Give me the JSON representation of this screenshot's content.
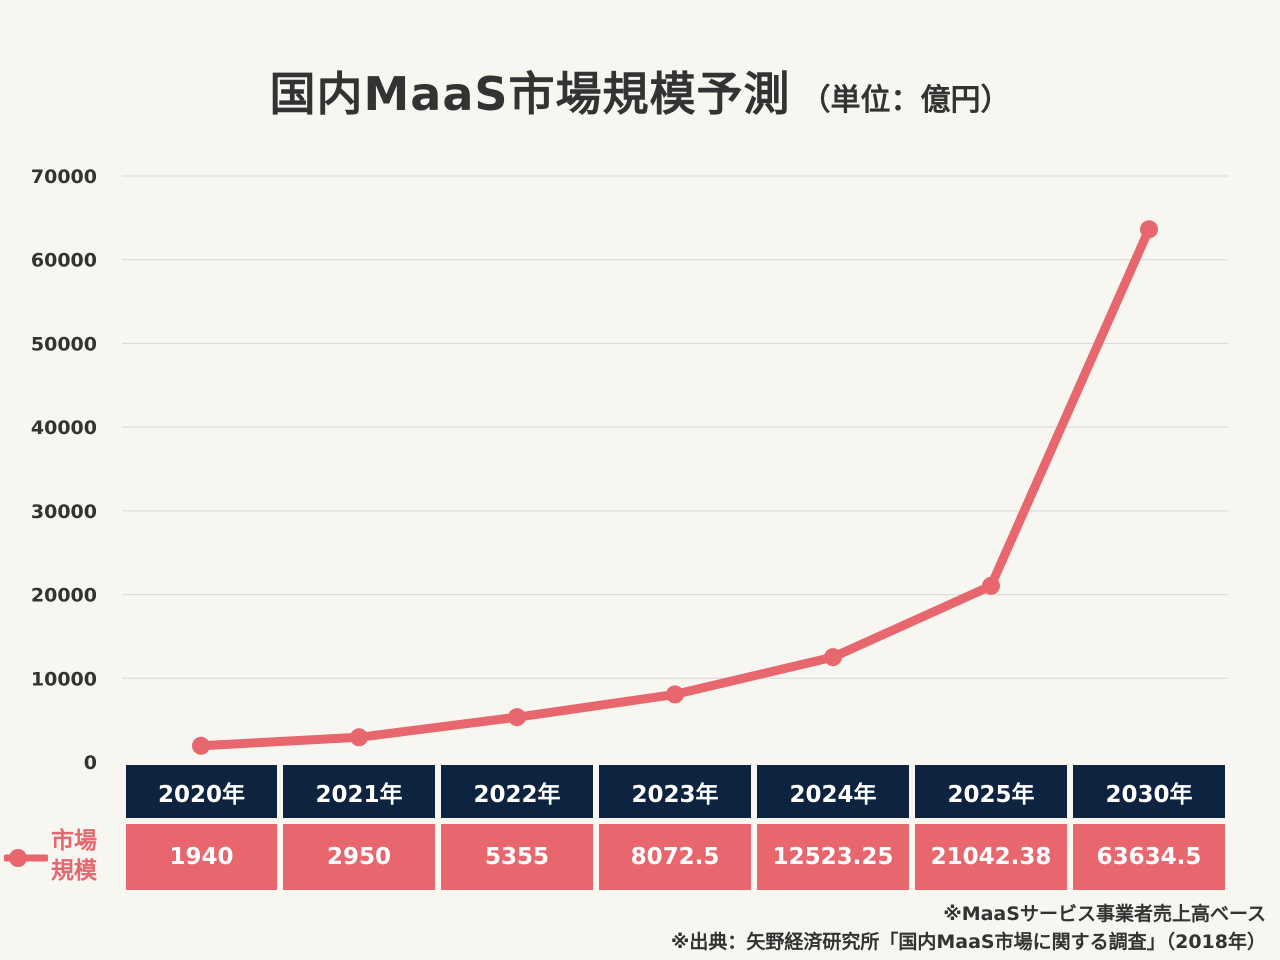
{
  "title": "国内MaaS市場規模予測",
  "unit_label": "（単位：億円）",
  "legend_label": "市場\n規模",
  "note_lines": [
    "※MaaSサービス事業者売上高ベース",
    "※出典：矢野経済研究所「国内MaaS市場に関する調査」（2018年）"
  ],
  "colors": {
    "series": "#e8666e",
    "header_bg": "#0d2340",
    "background": "#f8f6f1",
    "grid": "#d8d8d8"
  },
  "chart_data": {
    "type": "line",
    "title": "国内MaaS市場規模予測",
    "ylabel": "",
    "xlabel": "",
    "categories": [
      "2020年",
      "2021年",
      "2022年",
      "2023年",
      "2024年",
      "2025年",
      "2030年"
    ],
    "series": [
      {
        "name": "市場規模",
        "values": [
          1940,
          2950,
          5355,
          8072.5,
          12523.25,
          21042.38,
          63634.5
        ],
        "value_labels": [
          "1940",
          "2950",
          "5355",
          "8072.5",
          "12523.25",
          "21042.38",
          "63634.5"
        ]
      }
    ],
    "ylim": [
      0,
      70000
    ],
    "yticks": [
      "0",
      "10000",
      "20000",
      "30000",
      "40000",
      "50000",
      "60000",
      "70000"
    ],
    "grid": true,
    "legend": "left of data table"
  }
}
